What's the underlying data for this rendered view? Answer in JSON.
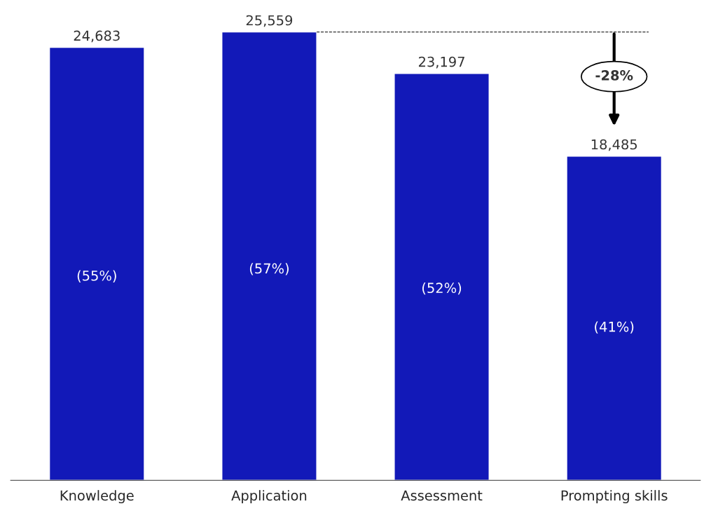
{
  "chart_data": {
    "type": "bar",
    "categories": [
      "Knowledge",
      "Application",
      "Assessment",
      "Prompting skills"
    ],
    "values": [
      24683,
      25559,
      23197,
      18485
    ],
    "value_labels": [
      "24,683",
      "25,559",
      "23,197",
      "18,485"
    ],
    "color": "#1219b8",
    "tick_labels": "x",
    "grid": false,
    "annotations": [
      "(55%)",
      "(57%)",
      "(52%)",
      "(41%)",
      "-28%"
    ],
    "ref_lines": [
      {
        "axis": "y",
        "value": 25559,
        "color": "#333333",
        "line_style": "dashed"
      }
    ]
  }
}
